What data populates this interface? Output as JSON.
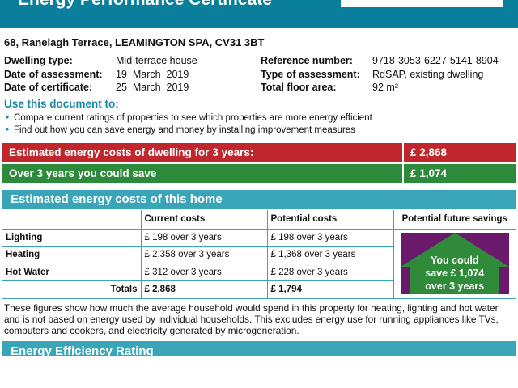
{
  "header": {
    "title": "Energy Performance Certificate"
  },
  "address": "68, Ranelagh Terrace, LEAMINGTON SPA, CV31 3BT",
  "details": [
    {
      "label": "Dwelling type:",
      "value": "Mid-terrace house"
    },
    {
      "label": "Date of assessment:",
      "value": "19  March  2019"
    },
    {
      "label": "Date of certificate:",
      "value": "25  March  2019"
    },
    {
      "label": "Reference number:",
      "value": "9718-3053-6227-5141-8904"
    },
    {
      "label": "Type of assessment:",
      "value": "RdSAP, existing dwelling"
    },
    {
      "label": "Total floor area:",
      "value": "92 m²"
    }
  ],
  "use": {
    "heading": "Use this document to:",
    "bullets": [
      "Compare current ratings of properties to see which properties are more energy efficient",
      "Find out how you can save energy and money by installing improvement measures"
    ]
  },
  "summary": [
    {
      "label": "Estimated energy costs of dwelling for 3 years:",
      "value": "£ 2,868",
      "color": "#c0272d"
    },
    {
      "label": "Over 3 years you could save",
      "value": "£ 1,074",
      "color": "#2d8a3b"
    }
  ],
  "costs": {
    "heading": "Estimated energy costs of this home",
    "columns": [
      "",
      "Current costs",
      "Potential costs",
      "Potential future savings"
    ],
    "rows": [
      {
        "label": "Lighting",
        "current": "£ 198 over 3 years",
        "potential": "£ 198 over 3 years"
      },
      {
        "label": "Heating",
        "current": "£ 2,358 over 3 years",
        "potential": "£ 1,368 over 3 years"
      },
      {
        "label": "Hot Water",
        "current": "£ 312 over 3 years",
        "potential": "£ 228 over 3 years"
      }
    ],
    "totals": {
      "label": "Totals",
      "current": "£ 2,868",
      "potential": "£ 1,794"
    },
    "savings": [
      "You could",
      "save £ 1,074",
      "over 3 years"
    ]
  },
  "note": "These figures show how much the average household would spend in this property for heating, lighting and hot water and is not based on energy used by individual households. This excludes energy use for running appliances like TVs, computers and cookers, and electricity generated by microgeneration.",
  "rating": {
    "heading": "Energy Efficiency Rating"
  }
}
